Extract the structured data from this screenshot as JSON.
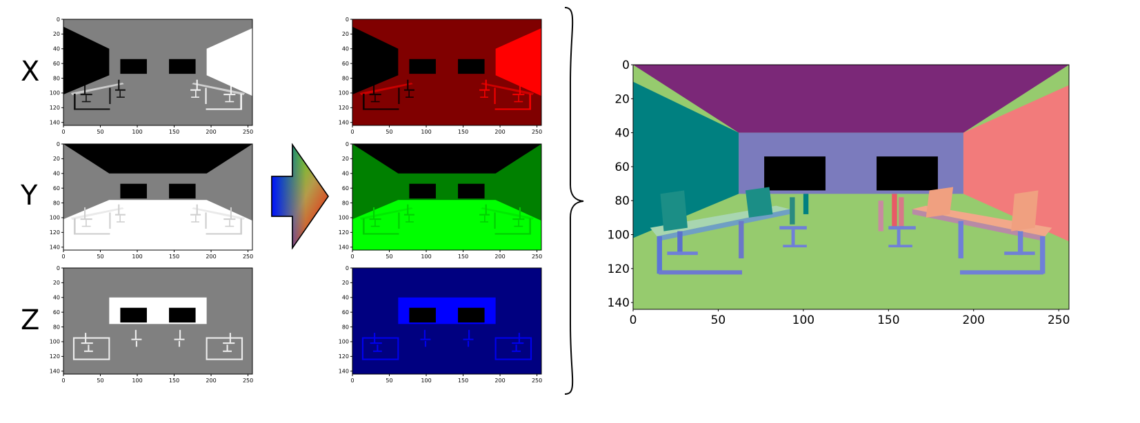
{
  "channel_labels": [
    "X",
    "Y",
    "Z"
  ],
  "small_axes": {
    "yticks": [
      "0",
      "20",
      "40",
      "60",
      "80",
      "100",
      "120",
      "140"
    ],
    "xticks": [
      "0",
      "50",
      "100",
      "150",
      "200",
      "250"
    ]
  },
  "large_axes": {
    "yticks": [
      "0",
      "20",
      "40",
      "60",
      "80",
      "100",
      "120",
      "140"
    ],
    "xticks": [
      "0",
      "50",
      "100",
      "150",
      "200",
      "250"
    ]
  },
  "grayscale_panels": [
    {
      "channel": "X",
      "scene": "x"
    },
    {
      "channel": "Y",
      "scene": "y"
    },
    {
      "channel": "Z",
      "scene": "z"
    }
  ],
  "color_panels": [
    {
      "channel": "X",
      "scene": "x",
      "tint": "red"
    },
    {
      "channel": "Y",
      "scene": "y",
      "tint": "green"
    },
    {
      "channel": "Z",
      "scene": "z",
      "tint": "blue"
    }
  ],
  "colors": {
    "x_tint": "#ff0000",
    "y_tint": "#00ff00",
    "z_tint": "#0000ff",
    "ceiling": "#7b2878",
    "left_wall": "#008080",
    "back_wall": "#7b7bbd",
    "right_wall": "#f27b7b",
    "floor": "#96cb6e"
  },
  "icons": [
    "rgb-gradient-arrow-icon",
    "right-curly-brace-icon"
  ]
}
